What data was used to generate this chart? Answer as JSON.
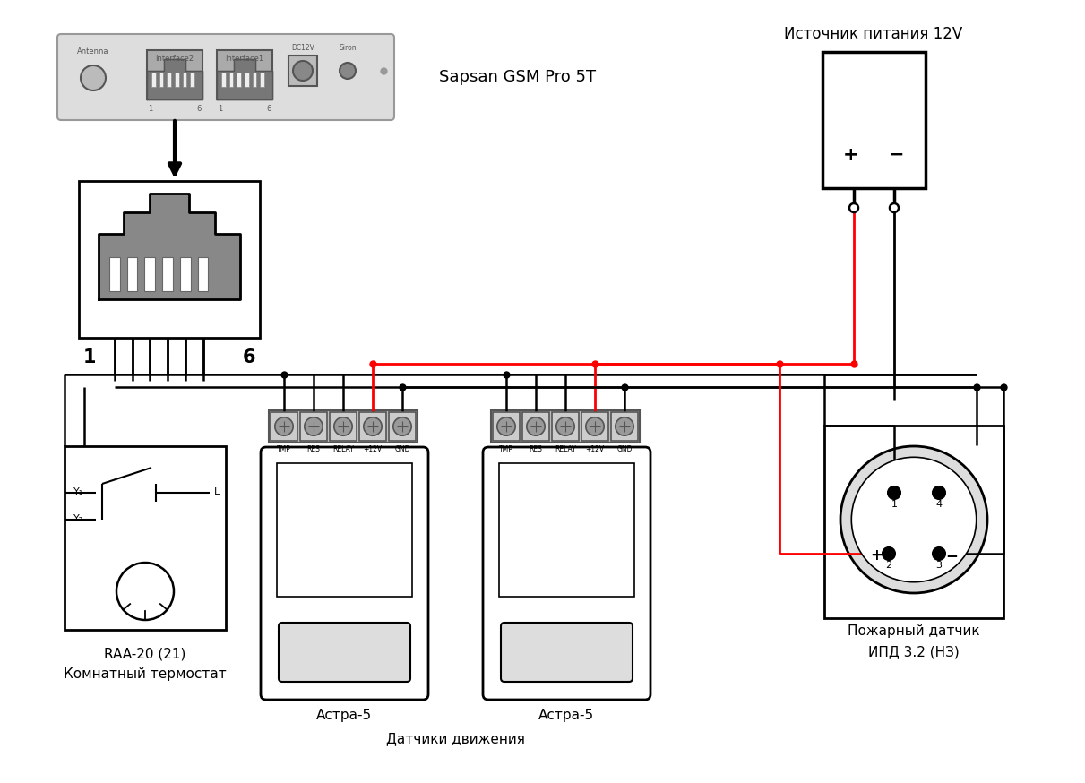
{
  "bg_color": "#ffffff",
  "black": "#000000",
  "red": "#ff0000",
  "gray_dark": "#555555",
  "gray_mid": "#888888",
  "gray_light": "#cccccc",
  "gray_body": "#aaaaaa",
  "gsm_label": "Sapsan GSM Pro 5T",
  "power_label": "Источник питания 12V",
  "thermostat_label1": "RAA-20 (21)",
  "thermostat_label2": "Комнатный термостат",
  "motion_label1": "Астра-5",
  "motion_label2": "Датчики движения",
  "fire_label1": "Пожарный датчик",
  "fire_label2": "ИПД 3.2 (НЗ)",
  "term_labels": [
    "TMP",
    "RES",
    "RELAY",
    "+12V",
    "GND"
  ],
  "lbl_1": "1",
  "lbl_6": "6",
  "lbl_Y1": "Y₁",
  "lbl_Y2": "Y₂",
  "lbl_L": "L",
  "lbl_plus": "+",
  "lbl_minus": "−",
  "lbl_antenna": "Antenna",
  "lbl_interface2": "Interface2",
  "lbl_interface1": "Interface1",
  "lbl_dc12v": "DC12V",
  "lbl_siron": "Siron"
}
